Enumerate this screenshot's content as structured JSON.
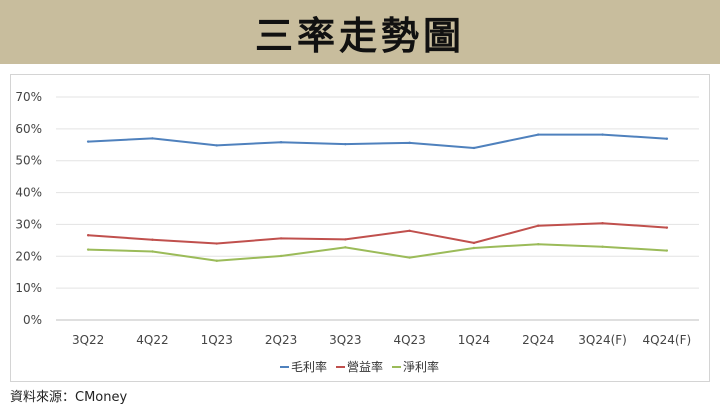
{
  "header": {
    "title": "三率走勢圖"
  },
  "source": "資料來源：CMoney",
  "colors": {
    "header_bg": "#c8bd9d",
    "gross": "#4f81bd",
    "operating": "#c0504d",
    "net": "#9bbb59",
    "grid": "#e3e3e3"
  },
  "chart_data": {
    "type": "line",
    "title": "三率走勢圖",
    "categories": [
      "3Q22",
      "4Q22",
      "1Q23",
      "2Q23",
      "3Q23",
      "4Q23",
      "1Q24",
      "2Q24",
      "3Q24(F)",
      "4Q24(F)"
    ],
    "y_ticks": [
      "0%",
      "10%",
      "20%",
      "30%",
      "40%",
      "50%",
      "60%",
      "70%"
    ],
    "ylim": [
      0,
      70
    ],
    "y_unit": "%",
    "grid": true,
    "legend_position": "bottom",
    "series": [
      {
        "name": "毛利率",
        "color": "#4f81bd",
        "values": [
          56.0,
          57.0,
          54.8,
          55.8,
          55.2,
          55.6,
          54.0,
          58.2,
          58.2,
          56.9
        ]
      },
      {
        "name": "營益率",
        "color": "#c0504d",
        "values": [
          26.6,
          25.2,
          24.0,
          25.6,
          25.3,
          28.0,
          24.2,
          29.6,
          30.4,
          29.0
        ]
      },
      {
        "name": "淨利率",
        "color": "#9bbb59",
        "values": [
          22.1,
          21.5,
          18.6,
          20.1,
          22.8,
          19.6,
          22.6,
          23.8,
          23.0,
          21.8
        ]
      }
    ]
  }
}
